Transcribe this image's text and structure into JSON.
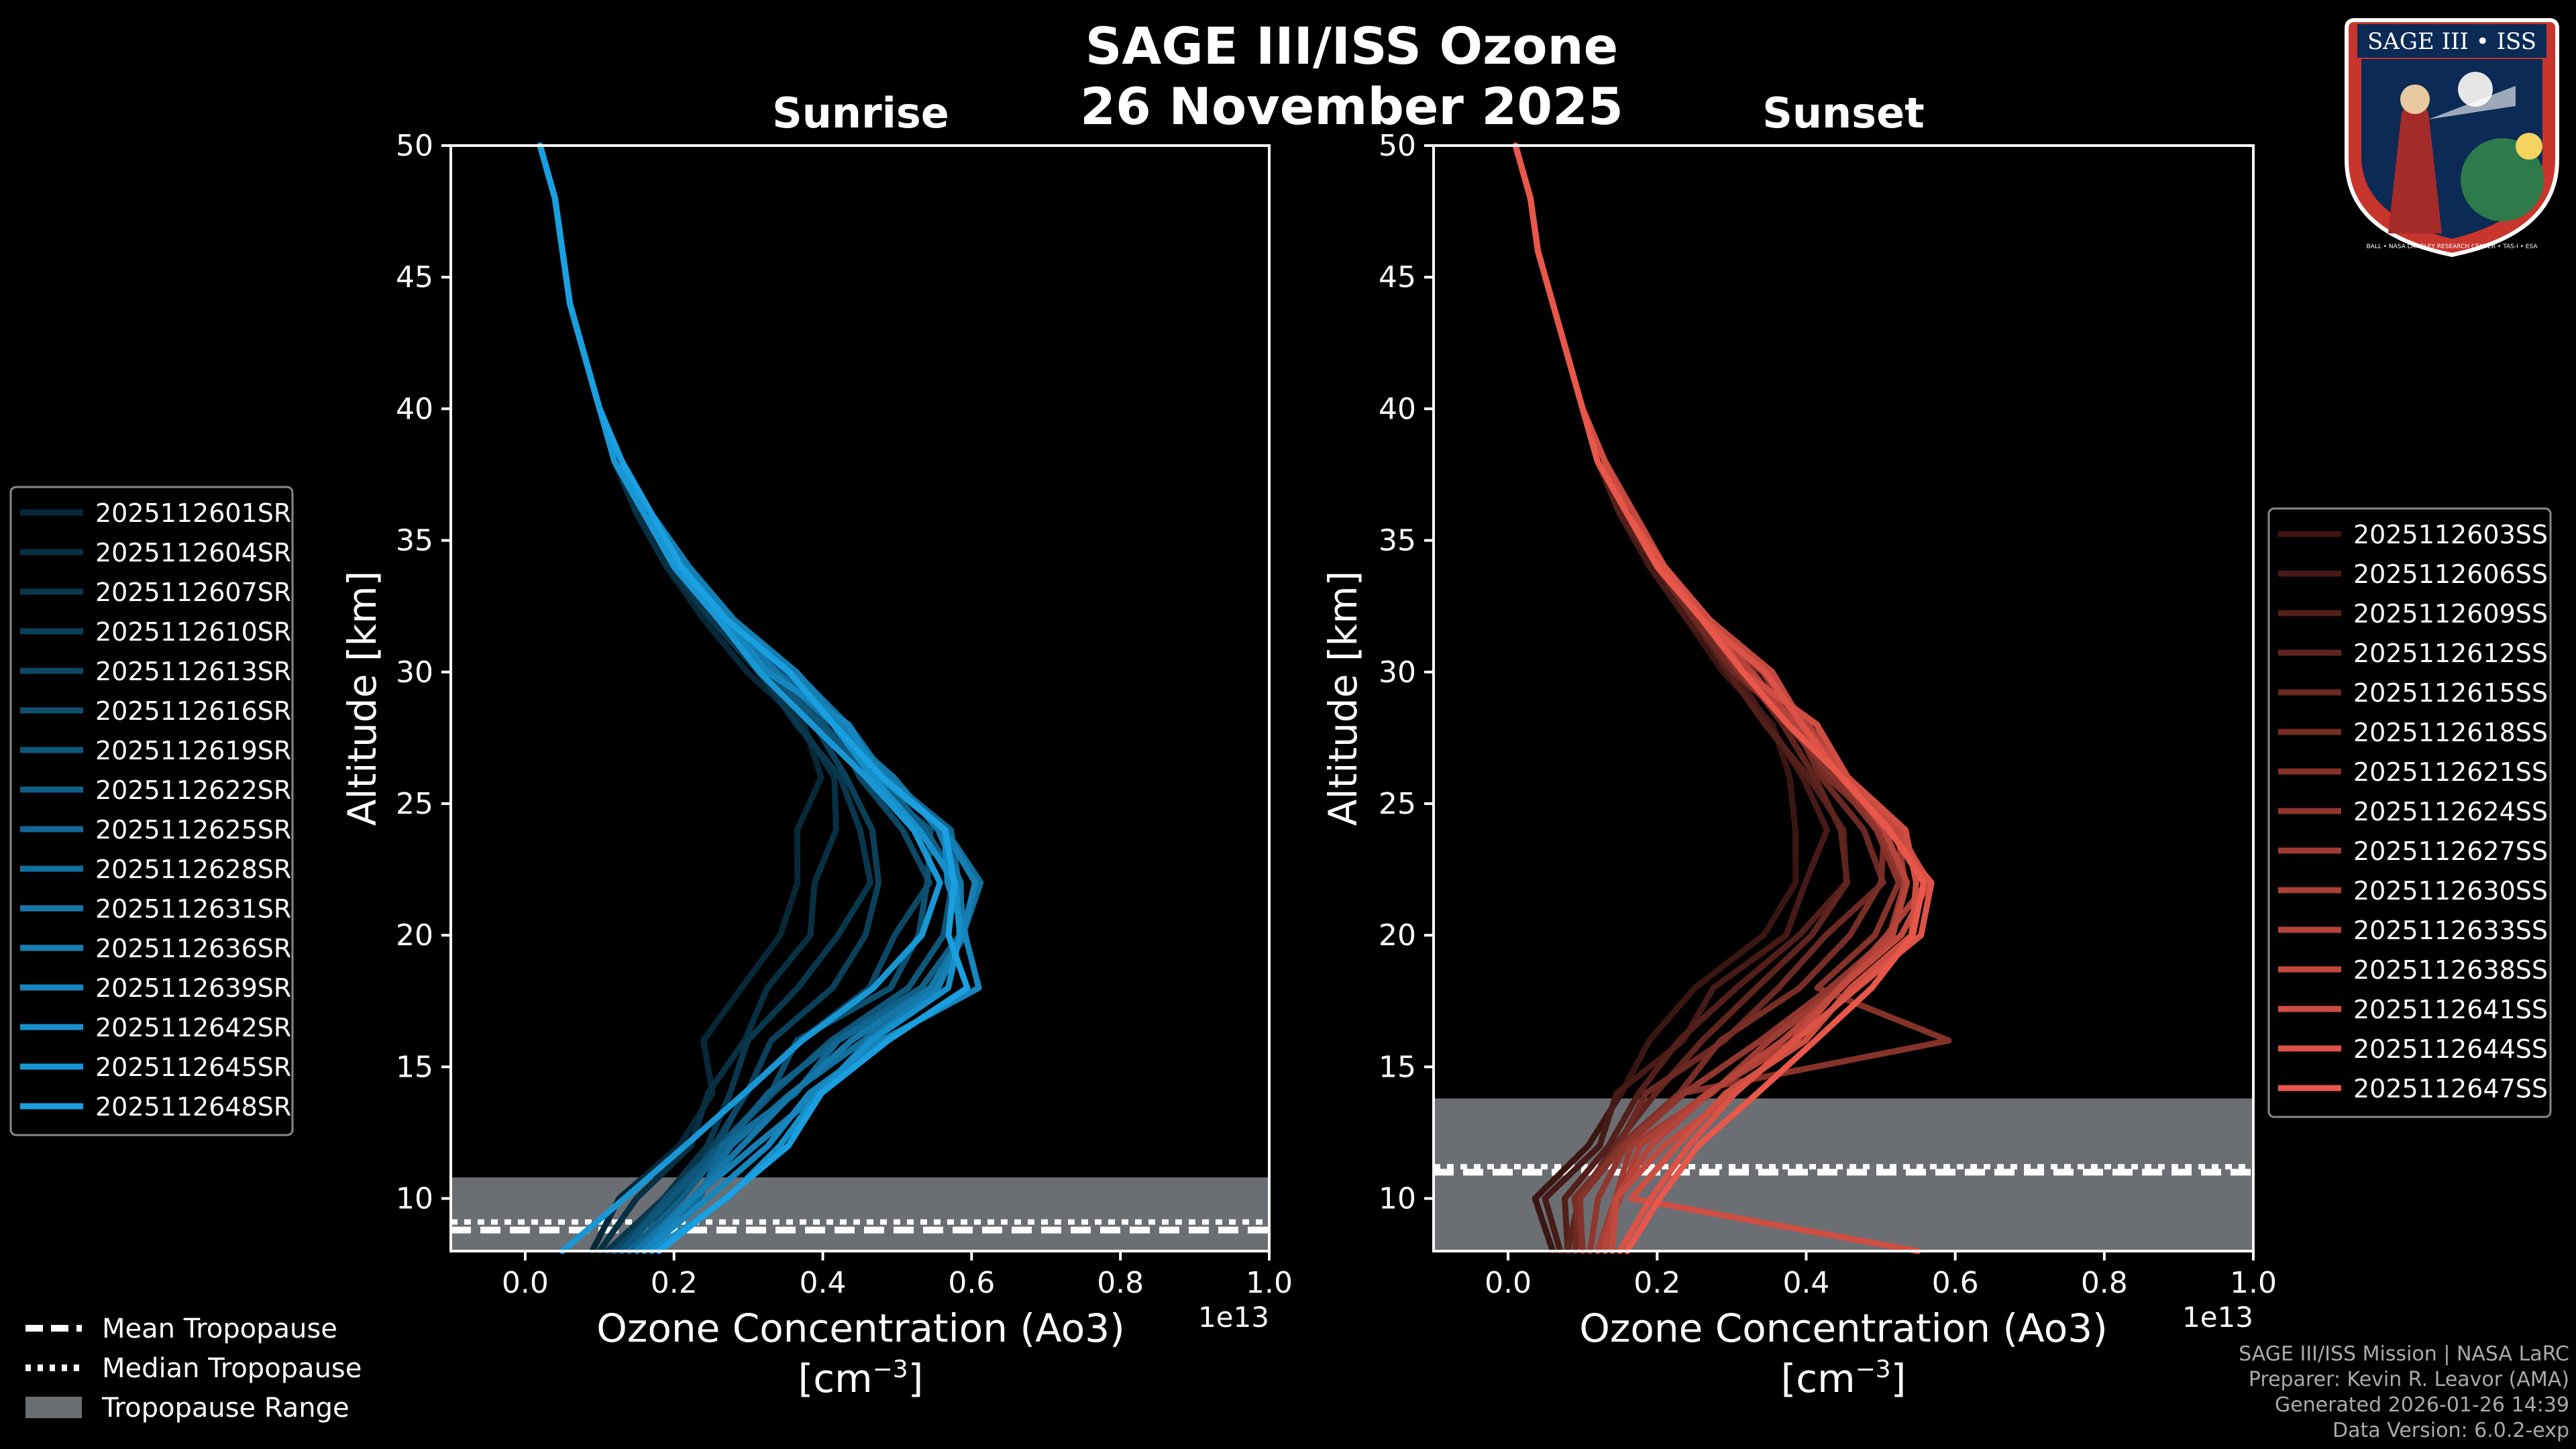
{
  "title": {
    "line1": "SAGE III/ISS Ozone",
    "line2": "26 November 2025"
  },
  "logo": {
    "banner": "SAGE III • ISS",
    "ring": "BALL • NASA LANGLEY RESEARCH CENTER • TAS-I • ESA",
    "icon": "mission-patch-icon"
  },
  "colors": {
    "sunrise": "#1a9fe0",
    "sunset": "#e8574a",
    "tropo_fill": "#6b6e72",
    "frame": "#ffffff",
    "background": "#000000"
  },
  "axes_common": {
    "ylabel": "Altitude [km]",
    "xlabel": "Ozone Concentration (Ao3)",
    "xunits": "[cm^-3]",
    "xunits_base": "[cm",
    "xunits_exp": "−3",
    "xunits_end": "]",
    "offset_label": "1e13"
  },
  "footer": {
    "line1": "SAGE III/ISS Mission | NASA LaRC",
    "line2": "Preparer: Kevin R. Leavor (AMA)",
    "line3": "Generated 2026-01-26 14:39",
    "line4": "Data Version: 6.0.2-exp"
  },
  "tropo_legend": [
    {
      "label": "Mean Tropopause",
      "style": "dashed"
    },
    {
      "label": "Median Tropopause",
      "style": "dotted"
    },
    {
      "label": "Tropopause Range",
      "style": "fill"
    }
  ],
  "chart_data": [
    {
      "type": "line",
      "title": "Sunrise",
      "xlim": [
        -0.1,
        1.0
      ],
      "ylim": [
        8,
        50
      ],
      "xticks": [
        0.0,
        0.2,
        0.4,
        0.6,
        0.8,
        1.0
      ],
      "xtick_labels": [
        "0.0",
        "0.2",
        "0.4",
        "0.6",
        "0.8",
        "1.0"
      ],
      "yticks": [
        10,
        15,
        20,
        25,
        30,
        35,
        40,
        45,
        50
      ],
      "tropopause": {
        "mean": 8.9,
        "median": 8.9,
        "range": [
          8,
          10.8
        ]
      },
      "altitude_km": [
        8,
        10,
        12,
        14,
        16,
        18,
        20,
        22,
        24,
        26,
        28,
        30,
        32,
        34,
        36,
        38,
        40,
        42,
        44,
        46,
        48,
        50
      ],
      "series": [
        {
          "name": "2025112601SR",
          "profile": [
            0.09,
            0.14,
            0.2,
            0.24,
            0.25,
            0.3,
            0.33,
            0.36,
            0.38,
            0.4,
            0.36,
            0.3,
            0.24,
            0.19,
            0.15,
            0.12,
            0.1,
            0.08,
            0.06,
            0.05,
            0.04,
            0.02
          ]
        },
        {
          "name": "2025112604SR",
          "profile": [
            0.1,
            0.16,
            0.21,
            0.26,
            0.28,
            0.34,
            0.37,
            0.4,
            0.41,
            0.42,
            0.37,
            0.31,
            0.25,
            0.19,
            0.15,
            0.12,
            0.1,
            0.08,
            0.06,
            0.05,
            0.04,
            0.02
          ]
        },
        {
          "name": "2025112607SR",
          "profile": [
            0.11,
            0.18,
            0.23,
            0.27,
            0.31,
            0.38,
            0.42,
            0.45,
            0.44,
            0.43,
            0.38,
            0.32,
            0.25,
            0.2,
            0.16,
            0.12,
            0.1,
            0.08,
            0.06,
            0.05,
            0.04,
            0.02
          ]
        },
        {
          "name": "2025112610SR",
          "profile": [
            0.12,
            0.19,
            0.24,
            0.29,
            0.33,
            0.42,
            0.47,
            0.49,
            0.48,
            0.44,
            0.39,
            0.32,
            0.26,
            0.2,
            0.16,
            0.13,
            0.1,
            0.08,
            0.06,
            0.05,
            0.04,
            0.02
          ]
        },
        {
          "name": "2025112613SR",
          "profile": [
            0.12,
            0.19,
            0.25,
            0.31,
            0.36,
            0.46,
            0.51,
            0.53,
            0.51,
            0.46,
            0.4,
            0.33,
            0.26,
            0.2,
            0.16,
            0.13,
            0.1,
            0.08,
            0.06,
            0.05,
            0.04,
            0.02
          ]
        },
        {
          "name": "2025112616SR",
          "profile": [
            0.13,
            0.2,
            0.26,
            0.32,
            0.38,
            0.48,
            0.53,
            0.55,
            0.53,
            0.47,
            0.4,
            0.33,
            0.27,
            0.21,
            0.16,
            0.13,
            0.1,
            0.08,
            0.06,
            0.05,
            0.04,
            0.02
          ]
        },
        {
          "name": "2025112619SR",
          "profile": [
            0.13,
            0.21,
            0.27,
            0.33,
            0.4,
            0.5,
            0.55,
            0.57,
            0.54,
            0.48,
            0.41,
            0.34,
            0.27,
            0.21,
            0.16,
            0.13,
            0.1,
            0.08,
            0.06,
            0.05,
            0.04,
            0.02
          ]
        },
        {
          "name": "2025112622SR",
          "profile": [
            0.14,
            0.21,
            0.28,
            0.34,
            0.42,
            0.52,
            0.57,
            0.58,
            0.55,
            0.49,
            0.42,
            0.34,
            0.27,
            0.21,
            0.17,
            0.13,
            0.1,
            0.08,
            0.06,
            0.05,
            0.04,
            0.02
          ]
        },
        {
          "name": "2025112625SR",
          "profile": [
            0.14,
            0.22,
            0.28,
            0.35,
            0.43,
            0.54,
            0.59,
            0.59,
            0.56,
            0.5,
            0.42,
            0.35,
            0.28,
            0.21,
            0.17,
            0.13,
            0.1,
            0.08,
            0.06,
            0.05,
            0.04,
            0.02
          ]
        },
        {
          "name": "2025112628SR",
          "profile": [
            0.15,
            0.22,
            0.29,
            0.36,
            0.44,
            0.55,
            0.6,
            0.6,
            0.56,
            0.5,
            0.43,
            0.35,
            0.28,
            0.22,
            0.17,
            0.13,
            0.1,
            0.08,
            0.06,
            0.05,
            0.04,
            0.02
          ]
        },
        {
          "name": "2025112631SR",
          "profile": [
            0.15,
            0.23,
            0.3,
            0.37,
            0.45,
            0.56,
            0.6,
            0.6,
            0.57,
            0.51,
            0.43,
            0.35,
            0.28,
            0.22,
            0.17,
            0.13,
            0.1,
            0.08,
            0.06,
            0.05,
            0.04,
            0.02
          ]
        },
        {
          "name": "2025112636SR",
          "profile": [
            0.16,
            0.24,
            0.31,
            0.38,
            0.46,
            0.57,
            0.59,
            0.59,
            0.56,
            0.5,
            0.43,
            0.35,
            0.28,
            0.22,
            0.17,
            0.13,
            0.1,
            0.08,
            0.06,
            0.05,
            0.04,
            0.02
          ]
        },
        {
          "name": "2025112639SR",
          "profile": [
            0.16,
            0.25,
            0.32,
            0.39,
            0.47,
            0.62,
            0.58,
            0.58,
            0.55,
            0.49,
            0.42,
            0.34,
            0.27,
            0.21,
            0.17,
            0.13,
            0.1,
            0.08,
            0.06,
            0.05,
            0.04,
            0.02
          ]
        },
        {
          "name": "2025112642SR",
          "profile": [
            0.17,
            0.26,
            0.33,
            0.4,
            0.48,
            0.57,
            0.57,
            0.57,
            0.54,
            0.48,
            0.41,
            0.34,
            0.27,
            0.21,
            0.16,
            0.13,
            0.1,
            0.08,
            0.06,
            0.05,
            0.04,
            0.02
          ]
        },
        {
          "name": "2025112645SR",
          "profile": [
            0.05,
            0.12,
            0.2,
            0.28,
            0.36,
            0.46,
            0.53,
            0.56,
            0.53,
            0.47,
            0.4,
            0.33,
            0.26,
            0.2,
            0.16,
            0.12,
            0.1,
            0.08,
            0.06,
            0.05,
            0.04,
            0.02
          ]
        },
        {
          "name": "2025112648SR",
          "profile": [
            0.18,
            0.27,
            0.34,
            0.41,
            0.49,
            0.58,
            0.58,
            0.58,
            0.55,
            0.49,
            0.42,
            0.34,
            0.27,
            0.21,
            0.17,
            0.13,
            0.1,
            0.08,
            0.06,
            0.05,
            0.04,
            0.02
          ]
        }
      ]
    },
    {
      "type": "line",
      "title": "Sunset",
      "xlim": [
        -0.1,
        1.0
      ],
      "ylim": [
        8,
        50
      ],
      "xticks": [
        0.0,
        0.2,
        0.4,
        0.6,
        0.8,
        1.0
      ],
      "xtick_labels": [
        "0.0",
        "0.2",
        "0.4",
        "0.6",
        "0.8",
        "1.0"
      ],
      "yticks": [
        10,
        15,
        20,
        25,
        30,
        35,
        40,
        45,
        50
      ],
      "tropopause": {
        "mean": 11.1,
        "median": 11.0,
        "range": [
          8,
          13.8
        ]
      },
      "altitude_km": [
        8,
        10,
        12,
        14,
        16,
        18,
        20,
        22,
        24,
        26,
        28,
        30,
        32,
        34,
        36,
        38,
        40,
        42,
        44,
        46,
        48,
        50
      ],
      "series": [
        {
          "name": "2025112603SS",
          "profile": [
            0.06,
            0.05,
            0.1,
            0.14,
            0.2,
            0.26,
            0.33,
            0.38,
            0.4,
            0.38,
            0.34,
            0.29,
            0.24,
            0.19,
            0.15,
            0.12,
            0.1,
            0.08,
            0.06,
            0.04,
            0.03,
            0.01
          ]
        },
        {
          "name": "2025112606SS",
          "profile": [
            0.07,
            0.06,
            0.11,
            0.16,
            0.22,
            0.29,
            0.36,
            0.41,
            0.42,
            0.4,
            0.35,
            0.3,
            0.24,
            0.19,
            0.15,
            0.12,
            0.1,
            0.08,
            0.06,
            0.04,
            0.03,
            0.01
          ]
        },
        {
          "name": "2025112609SS",
          "profile": [
            0.08,
            0.07,
            0.12,
            0.17,
            0.24,
            0.32,
            0.39,
            0.44,
            0.44,
            0.41,
            0.36,
            0.3,
            0.25,
            0.2,
            0.15,
            0.12,
            0.1,
            0.08,
            0.06,
            0.04,
            0.03,
            0.01
          ]
        },
        {
          "name": "2025112612SS",
          "profile": [
            0.08,
            0.08,
            0.13,
            0.19,
            0.26,
            0.34,
            0.42,
            0.47,
            0.46,
            0.42,
            0.37,
            0.31,
            0.25,
            0.2,
            0.16,
            0.12,
            0.1,
            0.08,
            0.06,
            0.04,
            0.03,
            0.01
          ]
        },
        {
          "name": "2025112615SS",
          "profile": [
            0.09,
            0.09,
            0.14,
            0.2,
            0.28,
            0.36,
            0.44,
            0.49,
            0.48,
            0.43,
            0.37,
            0.31,
            0.25,
            0.2,
            0.16,
            0.12,
            0.1,
            0.08,
            0.06,
            0.04,
            0.03,
            0.01
          ]
        },
        {
          "name": "2025112618SS",
          "profile": [
            0.1,
            0.1,
            0.15,
            0.22,
            0.3,
            0.38,
            0.46,
            0.51,
            0.49,
            0.44,
            0.38,
            0.32,
            0.26,
            0.2,
            0.16,
            0.12,
            0.1,
            0.08,
            0.06,
            0.04,
            0.03,
            0.01
          ]
        },
        {
          "name": "2025112621SS",
          "profile": [
            0.1,
            0.11,
            0.16,
            0.23,
            0.58,
            0.4,
            0.48,
            0.52,
            0.5,
            0.45,
            0.39,
            0.32,
            0.26,
            0.21,
            0.16,
            0.12,
            0.1,
            0.08,
            0.06,
            0.04,
            0.03,
            0.01
          ]
        },
        {
          "name": "2025112624SS",
          "profile": [
            0.11,
            0.12,
            0.17,
            0.25,
            0.34,
            0.42,
            0.5,
            0.53,
            0.51,
            0.46,
            0.39,
            0.33,
            0.26,
            0.21,
            0.16,
            0.13,
            0.1,
            0.08,
            0.06,
            0.04,
            0.03,
            0.01
          ]
        },
        {
          "name": "2025112627SS",
          "profile": [
            0.12,
            0.13,
            0.18,
            0.26,
            0.36,
            0.44,
            0.51,
            0.54,
            0.51,
            0.46,
            0.4,
            0.33,
            0.27,
            0.21,
            0.16,
            0.13,
            0.1,
            0.08,
            0.06,
            0.04,
            0.03,
            0.01
          ]
        },
        {
          "name": "2025112630SS",
          "profile": [
            0.12,
            0.14,
            0.19,
            0.27,
            0.37,
            0.45,
            0.52,
            0.55,
            0.52,
            0.47,
            0.4,
            0.33,
            0.27,
            0.21,
            0.17,
            0.13,
            0.1,
            0.08,
            0.06,
            0.04,
            0.03,
            0.01
          ]
        },
        {
          "name": "2025112633SS",
          "profile": [
            0.13,
            0.15,
            0.2,
            0.28,
            0.38,
            0.46,
            0.53,
            0.55,
            0.52,
            0.47,
            0.4,
            0.34,
            0.27,
            0.21,
            0.17,
            0.13,
            0.1,
            0.08,
            0.06,
            0.04,
            0.03,
            0.01
          ]
        },
        {
          "name": "2025112638SS",
          "profile": [
            0.14,
            0.16,
            0.21,
            0.29,
            0.38,
            0.46,
            0.53,
            0.55,
            0.52,
            0.47,
            0.4,
            0.34,
            0.27,
            0.21,
            0.17,
            0.13,
            0.1,
            0.08,
            0.06,
            0.04,
            0.03,
            0.01
          ]
        },
        {
          "name": "2025112641SS",
          "profile": [
            0.55,
            0.17,
            0.22,
            0.3,
            0.39,
            0.47,
            0.53,
            0.56,
            0.52,
            0.47,
            0.4,
            0.33,
            0.27,
            0.21,
            0.16,
            0.13,
            0.1,
            0.08,
            0.06,
            0.04,
            0.03,
            0.01
          ]
        },
        {
          "name": "2025112644SS",
          "profile": [
            0.15,
            0.18,
            0.23,
            0.31,
            0.4,
            0.47,
            0.54,
            0.56,
            0.52,
            0.46,
            0.39,
            0.33,
            0.26,
            0.21,
            0.16,
            0.12,
            0.1,
            0.08,
            0.06,
            0.04,
            0.03,
            0.01
          ]
        },
        {
          "name": "2025112647SS",
          "profile": [
            0.16,
            0.19,
            0.24,
            0.32,
            0.4,
            0.48,
            0.54,
            0.56,
            0.52,
            0.46,
            0.39,
            0.33,
            0.26,
            0.2,
            0.16,
            0.12,
            0.1,
            0.08,
            0.06,
            0.04,
            0.03,
            0.01
          ]
        }
      ]
    }
  ]
}
